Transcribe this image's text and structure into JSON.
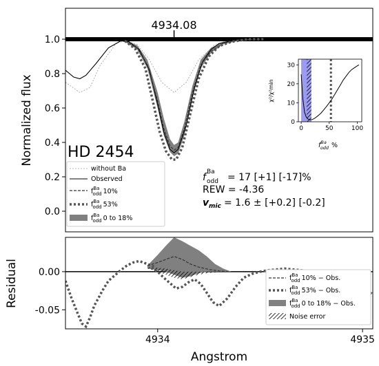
{
  "chart_data": [
    {
      "type": "line",
      "panel": "main",
      "ylabel": "Normalized flux",
      "ylim": [
        -0.12,
        1.18
      ],
      "xlim": [
        4933.55,
        4935.05
      ],
      "yticks": [
        "0.0",
        "0.2",
        "0.4",
        "0.6",
        "0.8",
        "1.0"
      ],
      "line_marker": {
        "x": 4934.08,
        "label": "4934.08"
      },
      "star_label": "HD 2454",
      "legend": {
        "position": "lower-left",
        "entries": [
          {
            "label": "without Ba",
            "style": "thin-dashed",
            "color": "#9e9e9e"
          },
          {
            "label": "Observed",
            "style": "solid",
            "color": "#000000"
          },
          {
            "label": "f 10%",
            "style": "dashed",
            "color": "#333333"
          },
          {
            "label": "f 53%",
            "style": "dotted",
            "color": "#555555"
          },
          {
            "label": "f 0 to 18%",
            "style": "fill",
            "color": "#808080"
          }
        ]
      },
      "annotations": {
        "f_name": "f",
        "f_superscript": "Ba",
        "f_subscript": "odd",
        "f_value": "= 17 [+1] [-17]%",
        "rew": "REW = -4.36",
        "vmic_label": "v",
        "vmic_sub": "mic",
        "vmic_value": "= 1.6 ± [+0.2] [-0.2]"
      },
      "series": [
        {
          "name": "without Ba",
          "x": [
            4933.55,
            4933.62,
            4933.67,
            4933.72,
            4933.8,
            4933.85,
            4933.9,
            4933.96,
            4934.02,
            4934.08,
            4934.14,
            4934.2,
            4934.28,
            4934.36,
            4934.48,
            4934.6,
            4934.8,
            4935.05
          ],
          "y": [
            0.75,
            0.69,
            0.72,
            0.85,
            0.98,
            0.99,
            0.97,
            0.88,
            0.75,
            0.69,
            0.75,
            0.88,
            0.97,
            0.99,
            1.0,
            1.0,
            1.0,
            1.0
          ]
        },
        {
          "name": "Observed",
          "x": [
            4933.55,
            4933.59,
            4933.62,
            4933.65,
            4933.7,
            4933.76,
            4933.82,
            4933.86,
            4933.91,
            4933.96,
            4934.0,
            4934.03,
            4934.06,
            4934.08,
            4934.1,
            4934.14,
            4934.18,
            4934.22,
            4934.26,
            4934.3,
            4934.36,
            4934.44,
            4934.55,
            4934.7,
            4934.85,
            4935.05
          ],
          "y": [
            0.82,
            0.78,
            0.77,
            0.79,
            0.86,
            0.95,
            0.99,
            0.985,
            0.94,
            0.82,
            0.62,
            0.46,
            0.36,
            0.34,
            0.36,
            0.5,
            0.72,
            0.87,
            0.94,
            0.975,
            0.99,
            1.0,
            1.0,
            1.0,
            1.0,
            1.0
          ]
        },
        {
          "name": "f 10%",
          "x": [
            4933.84,
            4933.9,
            4933.95,
            4934.0,
            4934.03,
            4934.06,
            4934.08,
            4934.1,
            4934.13,
            4934.17,
            4934.21,
            4934.26,
            4934.32,
            4934.4,
            4934.5
          ],
          "y": [
            0.99,
            0.95,
            0.85,
            0.64,
            0.48,
            0.38,
            0.355,
            0.37,
            0.48,
            0.69,
            0.85,
            0.93,
            0.975,
            0.995,
            1.0
          ]
        },
        {
          "name": "f 53%",
          "x": [
            4933.84,
            4933.89,
            4933.94,
            4933.98,
            4934.01,
            4934.04,
            4934.07,
            4934.09,
            4934.12,
            4934.16,
            4934.2,
            4934.25,
            4934.3,
            4934.36,
            4934.44,
            4934.52
          ],
          "y": [
            0.99,
            0.945,
            0.83,
            0.62,
            0.46,
            0.35,
            0.3,
            0.3,
            0.37,
            0.57,
            0.77,
            0.9,
            0.96,
            0.985,
            1.0,
            1.0
          ]
        },
        {
          "name": "f 0 to 18%",
          "x": [
            4933.84,
            4933.9,
            4933.95,
            4934.0,
            4934.03,
            4934.06,
            4934.08,
            4934.1,
            4934.13,
            4934.17,
            4934.21,
            4934.26,
            4934.32,
            4934.4,
            4934.5
          ],
          "y_upper": [
            0.995,
            0.965,
            0.88,
            0.69,
            0.54,
            0.42,
            0.385,
            0.4,
            0.52,
            0.73,
            0.88,
            0.95,
            0.985,
            0.998,
            1.0
          ],
          "y_lower": [
            0.985,
            0.94,
            0.83,
            0.6,
            0.44,
            0.345,
            0.32,
            0.335,
            0.44,
            0.66,
            0.83,
            0.92,
            0.97,
            0.993,
            1.0
          ]
        }
      ]
    },
    {
      "type": "scatter",
      "panel": "inset",
      "xlabel": "f %",
      "ylabel": "χ²/χ²min",
      "xlim": [
        -5,
        108
      ],
      "ylim": [
        0,
        33
      ],
      "xticks": [
        0,
        50,
        100
      ],
      "yticks": [
        0,
        10,
        20,
        30
      ],
      "shaded_range": [
        0,
        18
      ],
      "hatched_range": [
        10,
        18
      ],
      "dotted_vline": 53,
      "series": [
        {
          "name": "chi2",
          "x": [
            0,
            3,
            6,
            9,
            12,
            15,
            17,
            20,
            25,
            30,
            35,
            40,
            45,
            50,
            55,
            60,
            65,
            70,
            75,
            80,
            85,
            90,
            95,
            100,
            103
          ],
          "y": [
            25,
            12,
            5,
            2.5,
            1.5,
            1.1,
            1,
            1.2,
            2,
            3.2,
            4.5,
            6.2,
            8,
            10,
            12,
            14.5,
            17,
            19.5,
            22,
            24,
            26,
            27.5,
            28.5,
            29.5,
            30
          ]
        }
      ]
    },
    {
      "type": "line",
      "panel": "residual",
      "xlabel": "Angstrom",
      "ylabel": "Residual",
      "ylim": [
        -0.075,
        0.045
      ],
      "xlim": [
        4933.55,
        4935.05
      ],
      "xticks": [
        "4934",
        "4935"
      ],
      "yticks": [
        "-0.05",
        "0.00"
      ],
      "legend": {
        "position": "lower-right",
        "entries": [
          {
            "label": "f 10% − Obs.",
            "style": "dashed"
          },
          {
            "label": "f 53% − Obs.",
            "style": "dotted"
          },
          {
            "label": "f 0 to 18% − Obs.",
            "style": "fill"
          },
          {
            "label": "Noise error",
            "style": "hatch"
          }
        ]
      },
      "series": [
        {
          "name": "obs-noise-dots",
          "x": [
            4933.55,
            4933.58,
            4933.61,
            4933.63,
            4933.65,
            4933.67,
            4933.69,
            4933.71,
            4933.73,
            4933.76,
            4933.79,
            4933.82,
            4933.85,
            4933.88,
            4933.91,
            4933.93,
            4933.95,
            4933.97,
            4933.99
          ],
          "y": [
            -0.012,
            -0.035,
            -0.055,
            -0.068,
            -0.072,
            -0.06,
            -0.045,
            -0.035,
            -0.025,
            -0.012,
            -0.005,
            0.002,
            0.008,
            0.012,
            0.014,
            0.012,
            0.01,
            0.008,
            0.006
          ]
        },
        {
          "name": "f 10% − Obs.",
          "x": [
            4933.95,
            4934.0,
            4934.04,
            4934.08,
            4934.12,
            4934.16,
            4934.2,
            4934.25,
            4934.3,
            4934.35
          ],
          "y": [
            0.008,
            0.012,
            0.016,
            0.02,
            0.016,
            0.01,
            0.006,
            0.003,
            0.001,
            0.0
          ]
        },
        {
          "name": "f 53% − Obs.",
          "x": [
            4933.97,
            4934.0,
            4934.03,
            4934.06,
            4934.09,
            4934.12,
            4934.15,
            4934.18,
            4934.21,
            4934.24,
            4934.27,
            4934.3,
            4934.34,
            4934.38,
            4934.42,
            4934.46,
            4934.5,
            4934.54,
            4934.58,
            4934.62,
            4934.66,
            4934.7,
            4934.75,
            4934.8,
            4934.85,
            4934.9,
            4934.95,
            4935.0,
            4935.05
          ],
          "y": [
            0.005,
            0.0,
            -0.008,
            -0.015,
            -0.022,
            -0.02,
            -0.014,
            -0.01,
            -0.016,
            -0.028,
            -0.04,
            -0.045,
            -0.035,
            -0.02,
            -0.008,
            -0.003,
            0.0,
            0.002,
            0.003,
            0.004,
            0.003,
            0.002,
            0.0,
            -0.002,
            -0.004,
            -0.006,
            -0.012,
            -0.02,
            -0.03
          ]
        },
        {
          "name": "f 0 to 18% − Obs.",
          "x": [
            4933.95,
            4934.0,
            4934.04,
            4934.08,
            4934.12,
            4934.16,
            4934.2,
            4934.24,
            4934.28,
            4934.32,
            4934.36
          ],
          "y_upper": [
            0.008,
            0.022,
            0.034,
            0.045,
            0.04,
            0.034,
            0.028,
            0.02,
            0.01,
            0.004,
            0.0
          ],
          "y_lower": [
            0.004,
            0.002,
            0.0,
            -0.004,
            -0.008,
            -0.006,
            -0.002,
            0.0,
            0.0,
            0.0,
            0.0
          ]
        },
        {
          "name": "Noise error",
          "x": [
            4933.95,
            4934.0,
            4934.04,
            4934.08,
            4934.12,
            4934.16,
            4934.2,
            4934.24,
            4934.28,
            4934.32
          ],
          "y_upper": [
            0.006,
            0.005,
            0.004,
            0.002,
            0.0,
            0.0,
            0.0,
            0.0,
            0.0,
            0.0
          ],
          "y_lower": [
            0.004,
            0.0,
            -0.004,
            -0.008,
            -0.01,
            -0.007,
            -0.004,
            -0.002,
            -0.001,
            0.0
          ]
        }
      ]
    }
  ]
}
